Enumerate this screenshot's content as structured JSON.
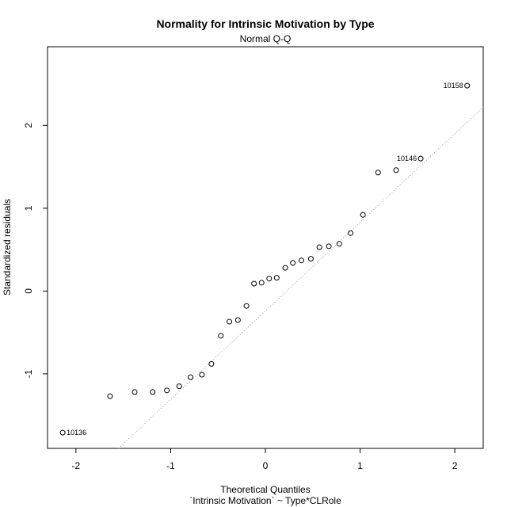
{
  "chart_data": {
    "type": "scatter",
    "title": "Normality for Intrinsic Motivation by Type",
    "subtitle": "Normal Q-Q",
    "xlabel": "Theoretical Quantiles",
    "xlabel2": "`Intrinsic Motivation` ~ Type*CLRole",
    "ylabel": "Standardized residuals",
    "xlim": [
      -2.3,
      2.3
    ],
    "ylim": [
      -1.9,
      2.95
    ],
    "xticks": [
      "-2",
      "-1",
      "0",
      "1",
      "2"
    ],
    "yticks": [
      "-1",
      "0",
      "1",
      "2"
    ],
    "grid": false,
    "points": [
      {
        "x": -2.14,
        "y": -1.71
      },
      {
        "x": -1.64,
        "y": -1.27
      },
      {
        "x": -1.38,
        "y": -1.22
      },
      {
        "x": -1.19,
        "y": -1.22
      },
      {
        "x": -1.04,
        "y": -1.2
      },
      {
        "x": -0.91,
        "y": -1.15
      },
      {
        "x": -0.79,
        "y": -1.04
      },
      {
        "x": -0.67,
        "y": -1.01
      },
      {
        "x": -0.57,
        "y": -0.88
      },
      {
        "x": -0.47,
        "y": -0.54
      },
      {
        "x": -0.38,
        "y": -0.37
      },
      {
        "x": -0.29,
        "y": -0.35
      },
      {
        "x": -0.2,
        "y": -0.18
      },
      {
        "x": -0.12,
        "y": 0.09
      },
      {
        "x": -0.04,
        "y": 0.1
      },
      {
        "x": 0.04,
        "y": 0.15
      },
      {
        "x": 0.12,
        "y": 0.16
      },
      {
        "x": 0.21,
        "y": 0.28
      },
      {
        "x": 0.29,
        "y": 0.34
      },
      {
        "x": 0.38,
        "y": 0.37
      },
      {
        "x": 0.48,
        "y": 0.39
      },
      {
        "x": 0.57,
        "y": 0.53
      },
      {
        "x": 0.67,
        "y": 0.54
      },
      {
        "x": 0.78,
        "y": 0.57
      },
      {
        "x": 0.9,
        "y": 0.7
      },
      {
        "x": 1.03,
        "y": 0.92
      },
      {
        "x": 1.19,
        "y": 1.43
      },
      {
        "x": 1.38,
        "y": 1.46
      },
      {
        "x": 1.64,
        "y": 1.6
      },
      {
        "x": 2.13,
        "y": 2.48
      }
    ],
    "labels": [
      {
        "text": "10136",
        "x": -2.14,
        "y": -1.71,
        "side": "right"
      },
      {
        "text": "10146",
        "x": 1.64,
        "y": 1.6,
        "side": "left"
      },
      {
        "text": "10158",
        "x": 2.13,
        "y": 2.48,
        "side": "left"
      }
    ],
    "reference_line": {
      "slope": 1.07,
      "intercept": -0.24,
      "style": "dotted",
      "color": "#999999"
    },
    "point_color": "#000000"
  }
}
